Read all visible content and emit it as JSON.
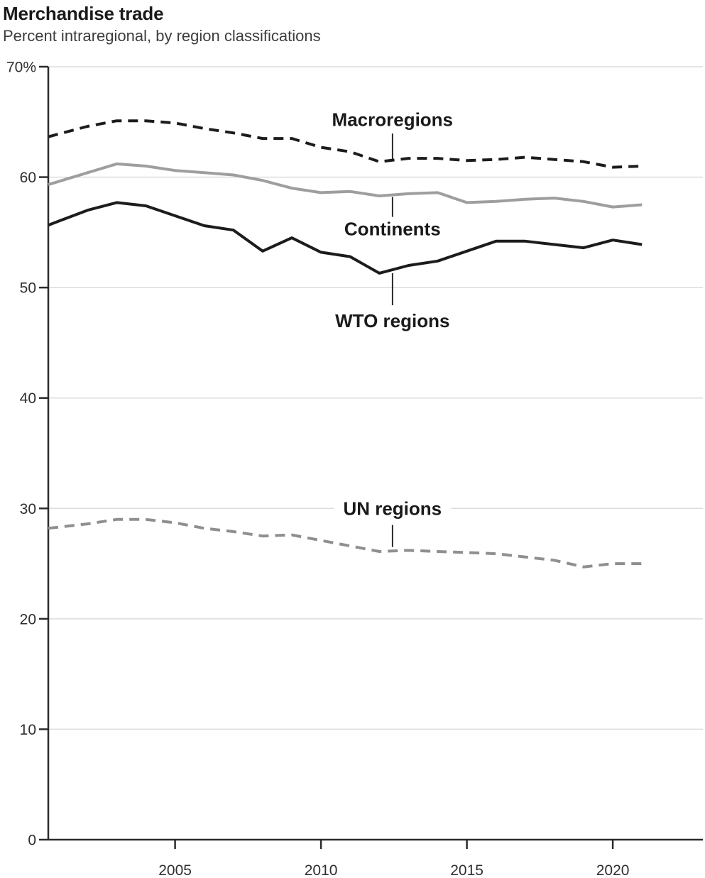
{
  "header": {
    "title": "Merchandise trade",
    "subtitle": "Percent intraregional, by region classifications"
  },
  "chart_data": {
    "type": "line",
    "title": "Merchandise trade",
    "subtitle": "Percent intraregional, by region classifications",
    "unit": "percent",
    "grid": "horizontal",
    "legend": "inline-annotations",
    "ylim": [
      0,
      70
    ],
    "yticks": [
      0,
      10,
      20,
      30,
      40,
      50,
      60,
      70
    ],
    "ytick_labels": [
      "0",
      "10",
      "20",
      "30",
      "40",
      "50",
      "60",
      "70%"
    ],
    "xticks": [
      2005,
      2010,
      2015,
      2020
    ],
    "xtick_labels": [
      "2005",
      "2010",
      "2015",
      "2020"
    ],
    "x": [
      2001,
      2002,
      2003,
      2004,
      2005,
      2006,
      2007,
      2008,
      2009,
      2010,
      2011,
      2012,
      2013,
      2014,
      2015,
      2016,
      2017,
      2018,
      2019,
      2020,
      2021
    ],
    "series": [
      {
        "name": "Macroregions",
        "style": "dashed",
        "color": "#1c1c1c",
        "values": [
          63.9,
          64.6,
          65.1,
          65.1,
          64.9,
          64.4,
          64.0,
          63.5,
          63.5,
          62.7,
          62.3,
          61.4,
          61.7,
          61.7,
          61.5,
          61.6,
          61.8,
          61.6,
          61.4,
          60.9,
          61.0
        ]
      },
      {
        "name": "Continents",
        "style": "solid",
        "color": "#9e9e9e",
        "values": [
          59.6,
          60.4,
          61.2,
          61.0,
          60.6,
          60.4,
          60.2,
          59.7,
          59.0,
          58.6,
          58.7,
          58.3,
          58.5,
          58.6,
          57.7,
          57.8,
          58.0,
          58.1,
          57.8,
          57.3,
          57.5
        ]
      },
      {
        "name": "WTO regions",
        "style": "solid",
        "color": "#1c1c1c",
        "values": [
          56.0,
          57.0,
          57.7,
          57.4,
          56.5,
          55.6,
          55.2,
          53.3,
          54.5,
          53.2,
          52.8,
          51.3,
          52.0,
          52.4,
          53.3,
          54.2,
          54.2,
          53.9,
          53.6,
          54.3,
          53.9
        ]
      },
      {
        "name": "UN regions",
        "style": "dashed",
        "color": "#8f8f8f",
        "values": [
          28.3,
          28.6,
          29.0,
          29.0,
          28.7,
          28.2,
          27.9,
          27.5,
          27.6,
          27.1,
          26.6,
          26.1,
          26.2,
          26.1,
          26.0,
          25.9,
          25.6,
          25.3,
          24.7,
          25.0,
          25.0
        ]
      }
    ],
    "annotations": [
      {
        "text": "Macroregions",
        "series": "Macroregions",
        "x_year": 2012.45,
        "label_value": 65.2,
        "leader": [
          63.95,
          61.65
        ]
      },
      {
        "text": "Continents",
        "series": "Continents",
        "x_year": 2012.45,
        "label_value": 55.3,
        "leader": [
          58.2,
          56.4
        ]
      },
      {
        "text": "WTO regions",
        "series": "WTO regions",
        "x_year": 2012.45,
        "label_value": 47.0,
        "leader": [
          51.3,
          48.4
        ]
      },
      {
        "text": "UN regions",
        "series": "UN regions",
        "x_year": 2012.45,
        "label_value": 30.0,
        "leader": [
          28.5,
          26.5
        ]
      }
    ],
    "colors": {
      "axis": "#2b2b2b",
      "grid": "#dcdcdc",
      "tick_text": "#2f2f2f",
      "annotation_text": "#1a1a1a",
      "leader_line": "#1a1a1a",
      "background": "#ffffff"
    }
  }
}
